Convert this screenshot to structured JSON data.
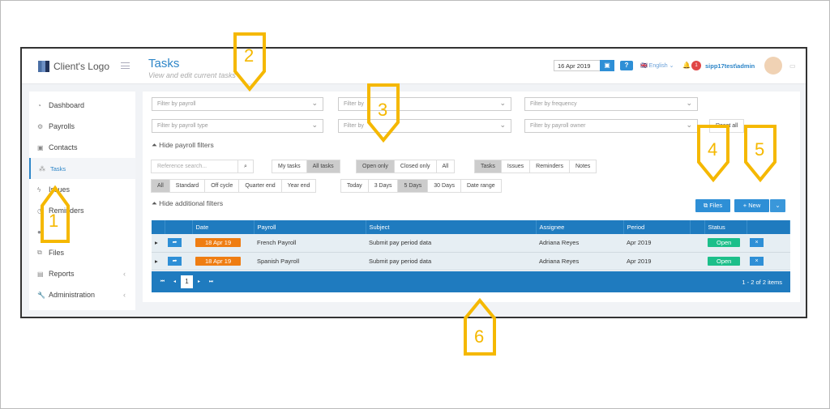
{
  "header": {
    "logo": "Client's Logo",
    "title": "Tasks",
    "subtitle": "View and edit current tasks",
    "date": "16 Apr 2019",
    "language": "English",
    "notifications": "1",
    "user": "sipp17test\\admin"
  },
  "sidebar": {
    "items": [
      {
        "label": "Dashboard",
        "icon": "dashboard-icon"
      },
      {
        "label": "Payrolls",
        "icon": "gears-icon"
      },
      {
        "label": "Contacts",
        "icon": "contact-icon"
      },
      {
        "label": "Tasks",
        "icon": "tasks-icon",
        "active": true
      },
      {
        "label": "Issues",
        "icon": "bolt-icon"
      },
      {
        "label": "Reminders",
        "icon": "reminder-icon"
      },
      {
        "label": "",
        "icon": "hidden-icon"
      },
      {
        "label": "Files",
        "icon": "files-icon"
      },
      {
        "label": "Reports",
        "icon": "reports-icon"
      },
      {
        "label": "Administration",
        "icon": "wrench-icon"
      }
    ]
  },
  "filters": {
    "payroll": "Filter by payroll",
    "col2a": "Filter by",
    "frequency": "Filter by frequency",
    "payroll_type": "Filter by payroll type",
    "col2b": "Filter by",
    "payroll_owner": "Filter by payroll owner",
    "reset": "Reset all",
    "hide_payroll": "Hide payroll filters",
    "search_placeholder": "Reference search...",
    "hide_additional": "Hide additional filters",
    "owner": [
      "My tasks",
      "All tasks"
    ],
    "state": [
      "Open only",
      "Closed only",
      "All"
    ],
    "kind": [
      "Tasks",
      "Issues",
      "Reminders",
      "Notes"
    ],
    "cycle": [
      "All",
      "Standard",
      "Off cycle",
      "Quarter end",
      "Year end"
    ],
    "range": [
      "Today",
      "3 Days",
      "5 Days",
      "30 Days",
      "Date range"
    ]
  },
  "actions": {
    "files": "Files",
    "new": "+ New"
  },
  "table": {
    "columns": [
      "",
      "",
      "Date",
      "Payroll",
      "Subject",
      "Assignee",
      "Period",
      "",
      "Status",
      ""
    ],
    "rows": [
      {
        "date": "18 Apr 19",
        "payroll": "French Payroll",
        "subject": "Submit pay period data",
        "assignee": "Adriana Reyes",
        "period": "Apr 2019",
        "status": "Open"
      },
      {
        "date": "18 Apr 19",
        "payroll": "Spanish Payroll",
        "subject": "Submit pay period data",
        "assignee": "Adriana Reyes",
        "period": "Apr 2019",
        "status": "Open"
      }
    ],
    "page": "1",
    "count": "1 - 2 of 2 items"
  },
  "callouts": [
    "1",
    "2",
    "3",
    "4",
    "5",
    "6"
  ],
  "colors": {
    "accent": "#2e8fd6",
    "date_tag": "#ef7d12",
    "status_open": "#1cbf8a",
    "callout": "#f5b800"
  }
}
